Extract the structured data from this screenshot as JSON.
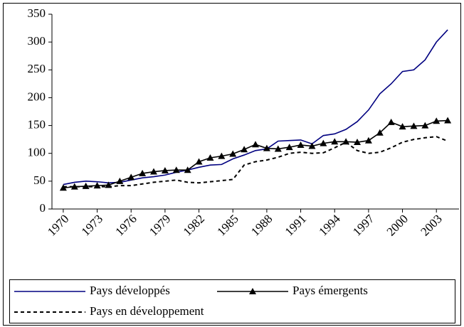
{
  "chart_data": {
    "type": "line",
    "x": [
      1970,
      1971,
      1972,
      1973,
      1974,
      1975,
      1976,
      1977,
      1978,
      1979,
      1980,
      1981,
      1982,
      1983,
      1984,
      1985,
      1986,
      1987,
      1988,
      1989,
      1990,
      1991,
      1992,
      1993,
      1994,
      1995,
      1996,
      1997,
      1998,
      1999,
      2000,
      2001,
      2002,
      2003,
      2004
    ],
    "xlim": [
      1969,
      2005
    ],
    "xticks": [
      1970,
      1973,
      1976,
      1979,
      1982,
      1985,
      1988,
      1991,
      1994,
      1997,
      2000,
      2003
    ],
    "ylim": [
      0,
      350
    ],
    "yticks": [
      0,
      50,
      100,
      150,
      200,
      250,
      300,
      350
    ],
    "legend": "bottom",
    "series": [
      {
        "name": "Pays développés",
        "color": "#000080",
        "style": "solid",
        "values": [
          44,
          48,
          50,
          49,
          47,
          48,
          52,
          56,
          58,
          61,
          66,
          70,
          75,
          79,
          80,
          90,
          97,
          105,
          108,
          122,
          123,
          124,
          117,
          132,
          135,
          143,
          157,
          178,
          207,
          225,
          247,
          250,
          268,
          300,
          322
        ]
      },
      {
        "name": "Pays émergents",
        "color": "#000000",
        "style": "solid",
        "marker": "triangle",
        "values": [
          38,
          40,
          41,
          42,
          43,
          50,
          57,
          64,
          67,
          69,
          70,
          70,
          85,
          92,
          95,
          99,
          107,
          116,
          109,
          108,
          111,
          115,
          113,
          118,
          121,
          121,
          120,
          123,
          137,
          156,
          148,
          149,
          150,
          158,
          159
        ]
      },
      {
        "name": "Pays en développement",
        "color": "#000000",
        "style": "dashed",
        "values": [
          40,
          40,
          40,
          40,
          40,
          42,
          42,
          45,
          48,
          50,
          52,
          48,
          47,
          49,
          51,
          53,
          79,
          85,
          88,
          93,
          100,
          102,
          100,
          101,
          110,
          120,
          105,
          100,
          102,
          110,
          120,
          125,
          128,
          130,
          122
        ]
      }
    ]
  }
}
